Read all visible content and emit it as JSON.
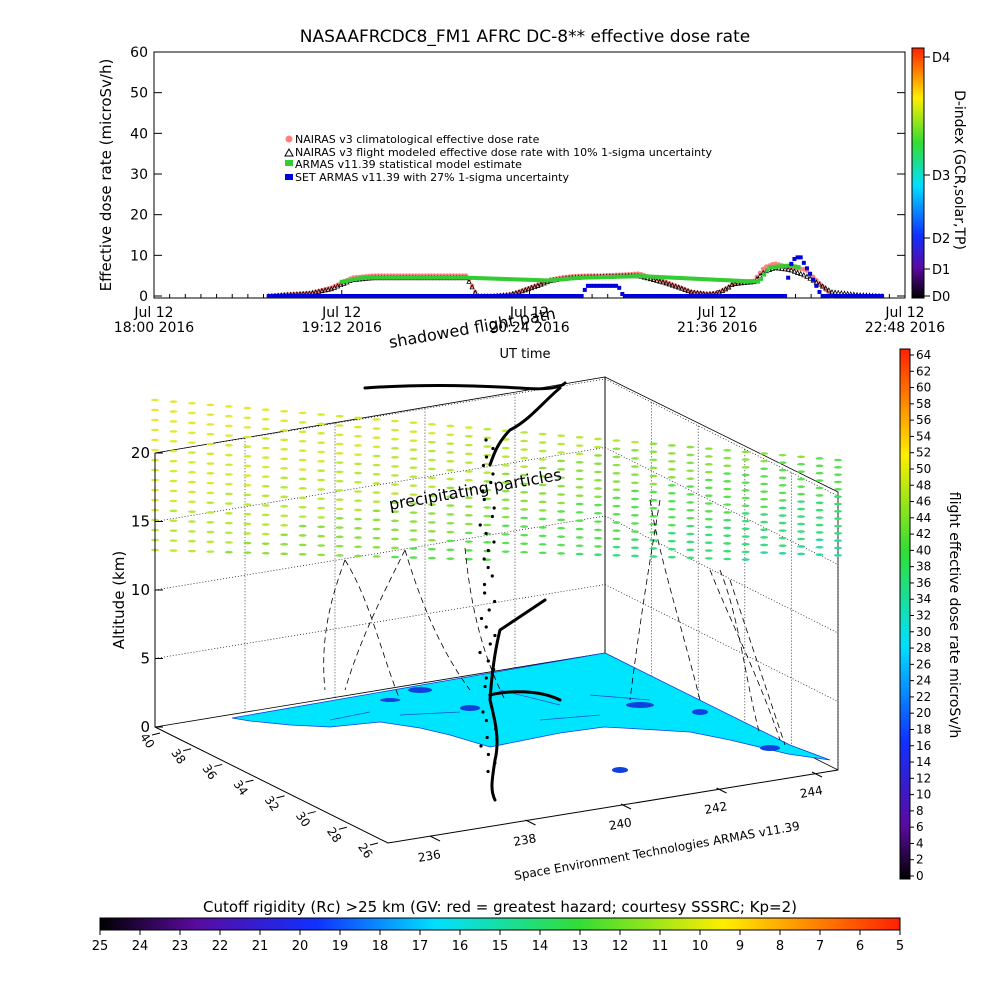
{
  "colors": {
    "bg": "#ffffff",
    "axis": "#000000",
    "climatological": "#ff8080",
    "modeled": "#000000",
    "armas_model": "#33cc33",
    "set_armas": "#0000dd",
    "surface": "#00e5ff",
    "surface_patch": "#1040e0",
    "flight": "#000000"
  },
  "chart_data": [
    {
      "type": "line",
      "title": "NASAAFRCDC8_FM1 AFRC DC-8** effective dose rate",
      "ylabel": "Effective dose rate (microSv/h)",
      "xlabel": "UT time",
      "ylim": [
        0,
        60
      ],
      "yticks": [
        "0",
        "10",
        "20",
        "30",
        "40",
        "50",
        "60"
      ],
      "xticks": [
        {
          "t": 0,
          "line1": "Jul 12",
          "line2": "18:00 2016"
        },
        {
          "t": 72,
          "line1": "Jul 12",
          "line2": "19:12 2016"
        },
        {
          "t": 144,
          "line1": "Jul 12",
          "line2": "20:24 2016"
        },
        {
          "t": 216,
          "line1": "Jul 12",
          "line2": "21:36 2016"
        },
        {
          "t": 288,
          "line1": "Jul 12",
          "line2": "22:48 2016"
        }
      ],
      "xlim": [
        0,
        288
      ],
      "legend": [
        "NAIRAS v3 climatological effective dose rate",
        "NAIRAS v3 flight modeled effective dose rate with 10% 1-sigma uncertainty",
        "ARMAS v11.39 statistical model estimate",
        "SET ARMAS v11.39 with 27% 1-sigma uncertainty"
      ],
      "legend_placement": "upper-left inside plot",
      "right_axis": {
        "label": "D-index (GCR,solar,TP)",
        "ticks": [
          "D0",
          "D1",
          "D2",
          "D3",
          "D4"
        ]
      },
      "series": [
        {
          "key": "climatological",
          "x": [
            44,
            50,
            60,
            68,
            76,
            84,
            92,
            100,
            108,
            116,
            120,
            124,
            130,
            136,
            140,
            146,
            152,
            156,
            160,
            166,
            172,
            178,
            182,
            186,
            196,
            202,
            206,
            212,
            216,
            220,
            222,
            226,
            230,
            234,
            238,
            244,
            250,
            260
          ],
          "values": [
            0,
            0.3,
            0.7,
            2,
            4.5,
            5,
            5,
            5,
            5,
            5,
            5,
            0,
            0,
            0.3,
            1,
            2.5,
            4,
            4.5,
            4.8,
            5,
            5,
            5.2,
            5.3,
            5.5,
            3.5,
            2,
            1,
            0.5,
            0.7,
            2,
            3,
            3.5,
            3.7,
            7,
            8,
            7,
            6.5,
            0
          ]
        },
        {
          "key": "modeled",
          "x": [
            44,
            50,
            60,
            68,
            76,
            84,
            92,
            100,
            108,
            116,
            120,
            124,
            130,
            136,
            140,
            146,
            152,
            156,
            160,
            166,
            172,
            178,
            182,
            186,
            196,
            202,
            206,
            212,
            216,
            220,
            222,
            226,
            230,
            234,
            238,
            244,
            250,
            260,
            270,
            280
          ],
          "values": [
            0,
            0.3,
            0.7,
            1.8,
            4,
            4.5,
            4.5,
            4.5,
            4.5,
            4.5,
            4.5,
            0,
            0,
            0.3,
            1,
            2.3,
            3.8,
            4.2,
            4.5,
            4.7,
            4.8,
            4.9,
            5,
            5,
            3.3,
            2,
            1,
            0.5,
            0.7,
            2,
            3,
            3.3,
            3.5,
            6,
            7,
            6.5,
            5,
            1,
            0.3,
            0
          ]
        },
        {
          "key": "armas_model",
          "x": [
            72,
            80,
            88,
            96,
            104,
            112,
            120,
            152,
            158,
            164,
            170,
            176,
            182,
            186,
            232,
            236,
            240,
            244,
            248
          ],
          "values": [
            3.5,
            4.5,
            4.5,
            4.5,
            4.5,
            4.5,
            4.5,
            3.8,
            4.2,
            4.5,
            4.6,
            4.7,
            4.8,
            4.9,
            3.5,
            7,
            7.3,
            7.5,
            7
          ]
        },
        {
          "key": "set_armas",
          "x": [
            44,
            164,
            166,
            172,
            178,
            180,
            182,
            186,
            240,
            242,
            244,
            246,
            248,
            252,
            256,
            260,
            264,
            270,
            280
          ],
          "values": [
            0,
            0,
            2.5,
            2.5,
            2.5,
            0,
            0,
            0,
            0,
            0,
            7.5,
            9.5,
            9.5,
            5,
            0,
            0,
            0,
            0,
            0
          ]
        }
      ]
    },
    {
      "type": "scatter",
      "title": "",
      "zlabel": "Altitude (km)",
      "zticks": [
        "0",
        "5",
        "10",
        "15",
        "20"
      ],
      "xticks": [
        "236",
        "238",
        "240",
        "242",
        "244"
      ],
      "yticks": [
        "40",
        "38",
        "36",
        "34",
        "32",
        "30",
        "28",
        "26"
      ],
      "annotations": [
        "shadowed flight path",
        "precipitating particles"
      ],
      "credit": "Space Environment Technologies ARMAS v11.39",
      "colorbar": {
        "label": "flight effective dose rate microSv/h",
        "ticks": [
          "0",
          "2",
          "4",
          "6",
          "8",
          "10",
          "12",
          "14",
          "16",
          "18",
          "20",
          "22",
          "24",
          "26",
          "28",
          "30",
          "32",
          "34",
          "36",
          "38",
          "40",
          "42",
          "44",
          "46",
          "48",
          "50",
          "52",
          "54",
          "56",
          "58",
          "60",
          "62",
          "64"
        ]
      },
      "bottom_colorbar": {
        "label": "Cutoff rigidity (Rc) >25 km (GV: red = greatest hazard; courtesy SSSRC; Kp=2)",
        "ticks": [
          "25",
          "24",
          "23",
          "22",
          "21",
          "20",
          "19",
          "18",
          "17",
          "16",
          "15",
          "14",
          "13",
          "12",
          "11",
          "10",
          "9",
          "8",
          "7",
          "6",
          "5"
        ]
      }
    }
  ]
}
